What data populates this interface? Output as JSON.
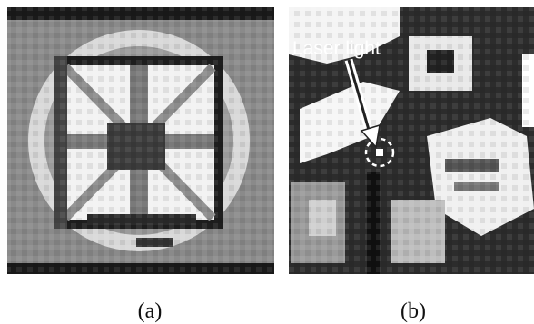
{
  "panels": [
    {
      "label": "(a)"
    },
    {
      "label": "(b)",
      "annotation": "Laser light"
    }
  ]
}
